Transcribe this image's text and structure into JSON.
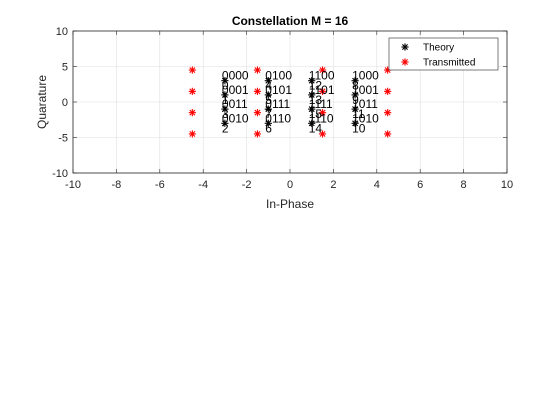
{
  "chart_data": {
    "type": "scatter",
    "title": "Constellation M = 16",
    "xlabel": "In-Phase",
    "ylabel": "Quarature",
    "xlim": [
      -10,
      10
    ],
    "ylim": [
      -10,
      10
    ],
    "xticks": [
      -10,
      -8,
      -6,
      -4,
      -2,
      0,
      2,
      4,
      6,
      8,
      10
    ],
    "yticks": [
      -10,
      -5,
      0,
      5,
      10
    ],
    "grid": true,
    "legend_position": "top-right",
    "series": [
      {
        "name": "Theory",
        "marker": "*",
        "color": "#000000",
        "points": [
          {
            "x": -3,
            "y": 3
          },
          {
            "x": -3,
            "y": 1
          },
          {
            "x": -3,
            "y": -1
          },
          {
            "x": -3,
            "y": -3
          },
          {
            "x": -1,
            "y": 3
          },
          {
            "x": -1,
            "y": 1
          },
          {
            "x": -1,
            "y": -1
          },
          {
            "x": -1,
            "y": -3
          },
          {
            "x": 1,
            "y": 3
          },
          {
            "x": 1,
            "y": 1
          },
          {
            "x": 1,
            "y": -1
          },
          {
            "x": 1,
            "y": -3
          },
          {
            "x": 3,
            "y": 3
          },
          {
            "x": 3,
            "y": 1
          },
          {
            "x": 3,
            "y": -1
          },
          {
            "x": 3,
            "y": -3
          }
        ]
      },
      {
        "name": "Transmitted",
        "marker": "*",
        "color": "#ff0000",
        "points": [
          {
            "x": -4.5,
            "y": 4.5
          },
          {
            "x": -4.5,
            "y": 1.5
          },
          {
            "x": -4.5,
            "y": -1.5
          },
          {
            "x": -4.5,
            "y": -4.5
          },
          {
            "x": -1.5,
            "y": 4.5
          },
          {
            "x": -1.5,
            "y": 1.5
          },
          {
            "x": -1.5,
            "y": -1.5
          },
          {
            "x": -1.5,
            "y": -4.5
          },
          {
            "x": 1.5,
            "y": 4.5
          },
          {
            "x": 1.5,
            "y": 1.5
          },
          {
            "x": 1.5,
            "y": -1.5
          },
          {
            "x": 1.5,
            "y": -4.5
          },
          {
            "x": 4.5,
            "y": 4.5
          },
          {
            "x": 4.5,
            "y": 1.5
          },
          {
            "x": 4.5,
            "y": -1.5
          },
          {
            "x": 4.5,
            "y": -4.5
          }
        ]
      }
    ],
    "annotations": [
      {
        "x": -3,
        "y": 3,
        "number": "0",
        "bits": "0000"
      },
      {
        "x": -3,
        "y": 1,
        "number": "1",
        "bits": "0001"
      },
      {
        "x": -3,
        "y": -1,
        "number": "3",
        "bits": "0011"
      },
      {
        "x": -3,
        "y": -3,
        "number": "2",
        "bits": "0010"
      },
      {
        "x": -1,
        "y": 3,
        "number": "4",
        "bits": "0100"
      },
      {
        "x": -1,
        "y": 1,
        "number": "5",
        "bits": "0101"
      },
      {
        "x": -1,
        "y": -1,
        "number": "7",
        "bits": "0111"
      },
      {
        "x": -1,
        "y": -3,
        "number": "6",
        "bits": "0110"
      },
      {
        "x": 1,
        "y": 3,
        "number": "12",
        "bits": "1100"
      },
      {
        "x": 1,
        "y": 1,
        "number": "13",
        "bits": "1101"
      },
      {
        "x": 1,
        "y": -1,
        "number": "15",
        "bits": "1111"
      },
      {
        "x": 1,
        "y": -3,
        "number": "14",
        "bits": "1110"
      },
      {
        "x": 3,
        "y": 3,
        "number": "8",
        "bits": "1000"
      },
      {
        "x": 3,
        "y": 1,
        "number": "9",
        "bits": "1001"
      },
      {
        "x": 3,
        "y": -1,
        "number": "11",
        "bits": "1011"
      },
      {
        "x": 3,
        "y": -3,
        "number": "10",
        "bits": "1010"
      }
    ]
  }
}
